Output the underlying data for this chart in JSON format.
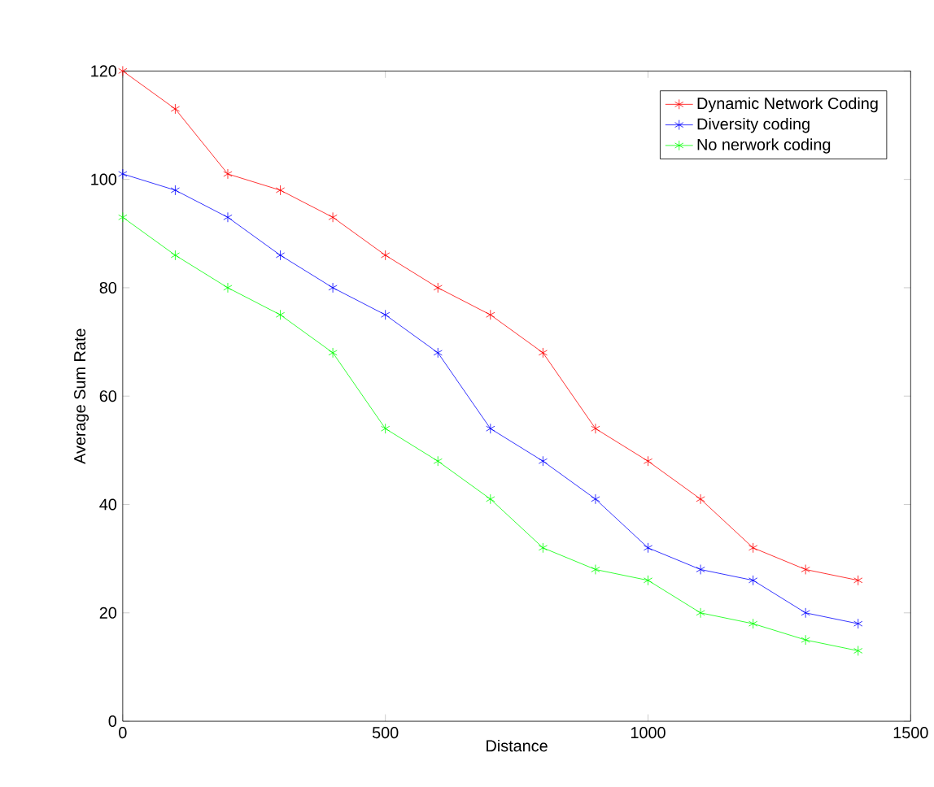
{
  "chart_data": {
    "type": "line",
    "xlabel": "Distance",
    "ylabel": "Average Sum Rate",
    "x": [
      0,
      100,
      200,
      300,
      400,
      500,
      600,
      700,
      800,
      900,
      1000,
      1100,
      1200,
      1300,
      1400
    ],
    "series": [
      {
        "name": "Dynamic Network Coding",
        "color": "#ff0000",
        "values": [
          120,
          113,
          101,
          98,
          93,
          86,
          80,
          75,
          68,
          54,
          48,
          41,
          32,
          28,
          26
        ]
      },
      {
        "name": "Diversity coding",
        "color": "#0000ff",
        "values": [
          101,
          98,
          93,
          86,
          80,
          75,
          68,
          54,
          48,
          41,
          32,
          28,
          26,
          20,
          18
        ]
      },
      {
        "name": "No nerwork coding",
        "color": "#00ff00",
        "values": [
          93,
          86,
          80,
          75,
          68,
          54,
          48,
          41,
          32,
          28,
          26,
          20,
          18,
          15,
          13
        ]
      }
    ],
    "xlim": [
      0,
      1500
    ],
    "ylim": [
      0,
      120
    ],
    "xticks": [
      0,
      500,
      1000,
      1500
    ],
    "yticks": [
      0,
      20,
      40,
      60,
      80,
      100,
      120
    ],
    "legend": "top right",
    "marker": "cross",
    "line_style": "solid",
    "grid": false
  }
}
